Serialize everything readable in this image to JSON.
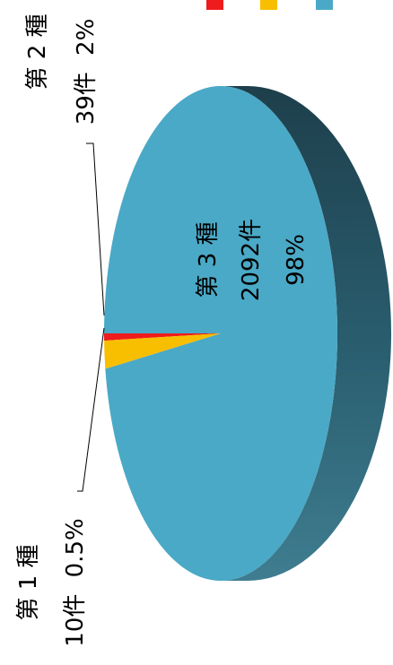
{
  "chart_data": {
    "type": "pie",
    "title": "",
    "categories": [
      "第 1 種",
      "第 2 種",
      "第 3 種"
    ],
    "values": [
      10,
      39,
      2092
    ],
    "units": "件",
    "percent_labels": [
      "0.5%",
      "2%",
      "98%"
    ],
    "series": [
      {
        "name": "",
        "values": [
          10,
          39,
          2092
        ],
        "colors": [
          "#ee1c1c",
          "#f8be00",
          "#4aa9c6"
        ]
      }
    ],
    "labels": [
      {
        "category": "第 1 種",
        "count": "10件",
        "percent": "0.5%"
      },
      {
        "category": "第 2 種",
        "count": "39件",
        "percent": "2%"
      },
      {
        "category": "第 3 種",
        "count": "2092件",
        "percent": "98%"
      }
    ],
    "style": "3d-pie",
    "orientation": "rotated-90-ccw",
    "legend": {
      "placement": "top-right",
      "show_text": false
    }
  }
}
